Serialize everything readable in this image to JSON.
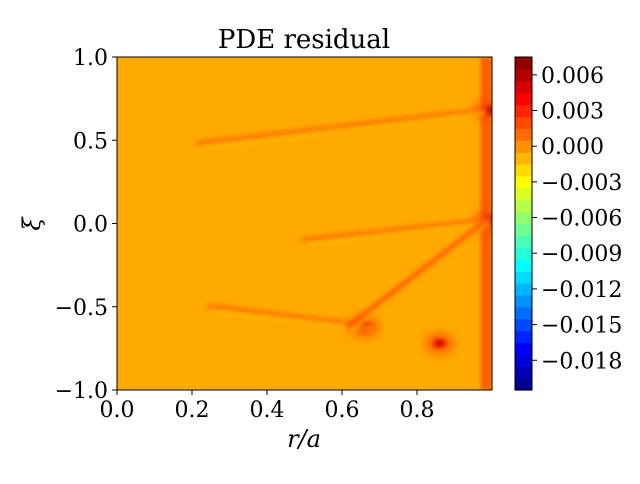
{
  "chart_data": {
    "type": "heatmap",
    "title": "PDE residual",
    "xlabel": "r/a",
    "ylabel": "ξ",
    "xlim": [
      0.0,
      1.0
    ],
    "ylim": [
      -1.0,
      1.0
    ],
    "x_ticks": [
      "0.0",
      "0.2",
      "0.4",
      "0.6",
      "0.8"
    ],
    "x_tick_values": [
      0.0,
      0.2,
      0.4,
      0.6,
      0.8
    ],
    "y_ticks": [
      "−1.0",
      "−0.5",
      "0.0",
      "0.5",
      "1.0"
    ],
    "y_tick_values": [
      -1.0,
      -0.5,
      0.0,
      0.5,
      1.0
    ],
    "colorbar": {
      "colormap": "jet",
      "min": -0.0205,
      "max": 0.0075,
      "ticks": [
        "0.006",
        "0.003",
        "0.000",
        "−0.003",
        "−0.006",
        "−0.009",
        "−0.012",
        "−0.015",
        "−0.018"
      ],
      "tick_values": [
        0.006,
        0.003,
        0.0,
        -0.003,
        -0.006,
        -0.009,
        -0.012,
        -0.015,
        -0.018
      ]
    },
    "background_value": 0.0,
    "features": [
      {
        "kind": "edge band",
        "r": [
          0.97,
          1.0
        ],
        "xi": [
          -1.0,
          1.0
        ],
        "value": 0.002
      },
      {
        "kind": "hot spot",
        "r": 0.99,
        "xi": 0.68,
        "value": 0.006
      },
      {
        "kind": "hot spot",
        "r": 0.99,
        "xi": 0.02,
        "value": 0.006
      },
      {
        "kind": "hot spot",
        "r": 0.66,
        "xi": -0.62,
        "value": 0.005
      },
      {
        "kind": "hot spot",
        "r": 0.86,
        "xi": -0.72,
        "value": 0.005
      },
      {
        "kind": "streak",
        "from": [
          0.22,
          0.48
        ],
        "to": [
          0.98,
          0.68
        ],
        "value": 0.001
      },
      {
        "kind": "streak",
        "from": [
          0.5,
          -0.1
        ],
        "to": [
          0.99,
          0.02
        ],
        "value": 0.001
      },
      {
        "kind": "streak",
        "from": [
          0.25,
          -0.5
        ],
        "to": [
          0.68,
          -0.62
        ],
        "value": 0.001
      },
      {
        "kind": "streak",
        "from": [
          0.62,
          -0.62
        ],
        "to": [
          0.99,
          0.02
        ],
        "value": 0.002
      }
    ]
  }
}
